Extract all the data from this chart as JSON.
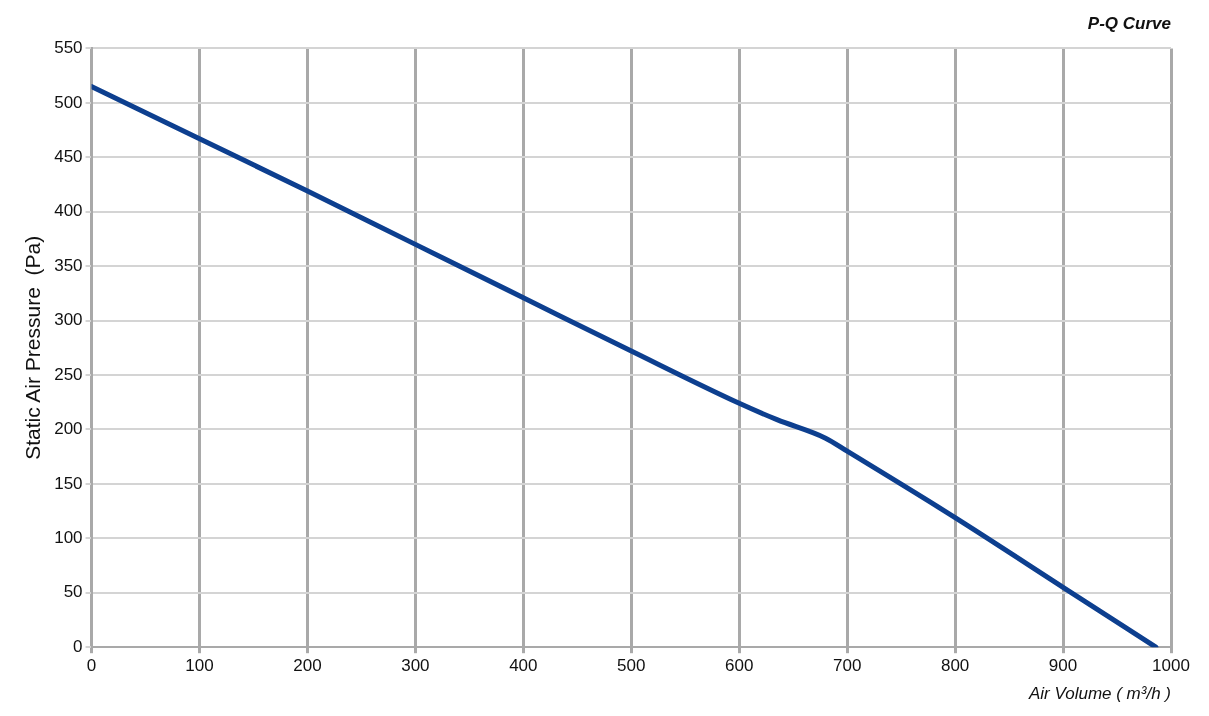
{
  "chart_data": {
    "type": "line",
    "title": "P-Q Curve",
    "xlabel": "Air Volume ( m³/h )",
    "ylabel": "Static Air Pressure  (Pa)",
    "series": [
      {
        "color": "#0d3f8f",
        "x": [
          0,
          100,
          200,
          300,
          400,
          500,
          600,
          635,
          680,
          700,
          800,
          900,
          986
        ],
        "values": [
          515,
          467,
          419,
          370,
          321,
          272,
          224,
          209,
          192,
          180,
          119,
          55,
          0
        ]
      }
    ],
    "xlim": [
      0,
      1000
    ],
    "xticks": [
      0,
      100,
      200,
      300,
      400,
      500,
      600,
      700,
      800,
      900,
      1000
    ],
    "ylim": [
      0,
      550
    ],
    "yticks": [
      0,
      50,
      100,
      150,
      200,
      250,
      300,
      350,
      400,
      450,
      500,
      550
    ],
    "grid": true,
    "legend": false,
    "marker": "none",
    "line_style": "solid"
  }
}
